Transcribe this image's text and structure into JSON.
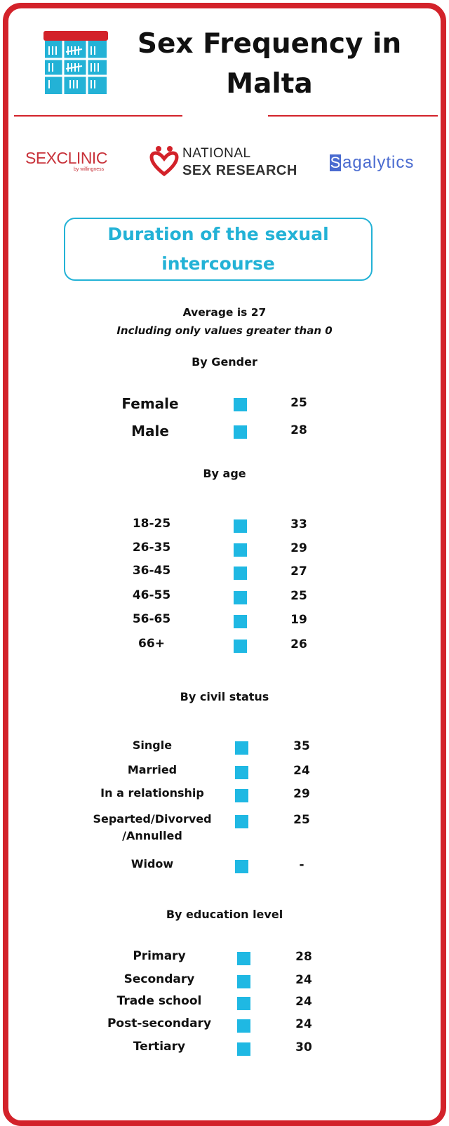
{
  "header": {
    "title": "Sex Frequency in Malta",
    "icon": "calendar-tally-icon"
  },
  "logos": {
    "sexclinic": {
      "main_bold": "SEX",
      "main_thin": "CLINIC",
      "sub": "by willingness"
    },
    "national_sex_research": {
      "line1": "NATIONAL",
      "line2": "SEX RESEARCH"
    },
    "sagalytics": {
      "first": "S",
      "rest": "agalytics"
    }
  },
  "section": {
    "title": "Duration of the sexual intercourse",
    "average": "Average is 27",
    "note": "Including only values greater than 0"
  },
  "colors": {
    "accent": "#d3222a",
    "teal": "#23b2d6",
    "marker": "#1fb8e3"
  },
  "chart_data": [
    {
      "type": "table",
      "title": "By Gender",
      "categories": [
        "Female",
        "Male"
      ],
      "values": [
        25,
        28
      ]
    },
    {
      "type": "table",
      "title": "By age",
      "categories": [
        "18-25",
        "26-35",
        "36-45",
        "46-55",
        "56-65",
        "66+"
      ],
      "values": [
        33,
        29,
        27,
        25,
        19,
        26
      ]
    },
    {
      "type": "table",
      "title": "By civil status",
      "categories": [
        "Single",
        "Married",
        "In a relationship",
        "Separted/Divorved /Annulled",
        "Widow"
      ],
      "values": [
        35,
        24,
        29,
        25,
        "-"
      ]
    },
    {
      "type": "table",
      "title": "By education level",
      "categories": [
        "Primary",
        "Secondary",
        "Trade school",
        "Post-secondary",
        "Tertiary"
      ],
      "values": [
        28,
        24,
        24,
        24,
        30
      ]
    }
  ]
}
